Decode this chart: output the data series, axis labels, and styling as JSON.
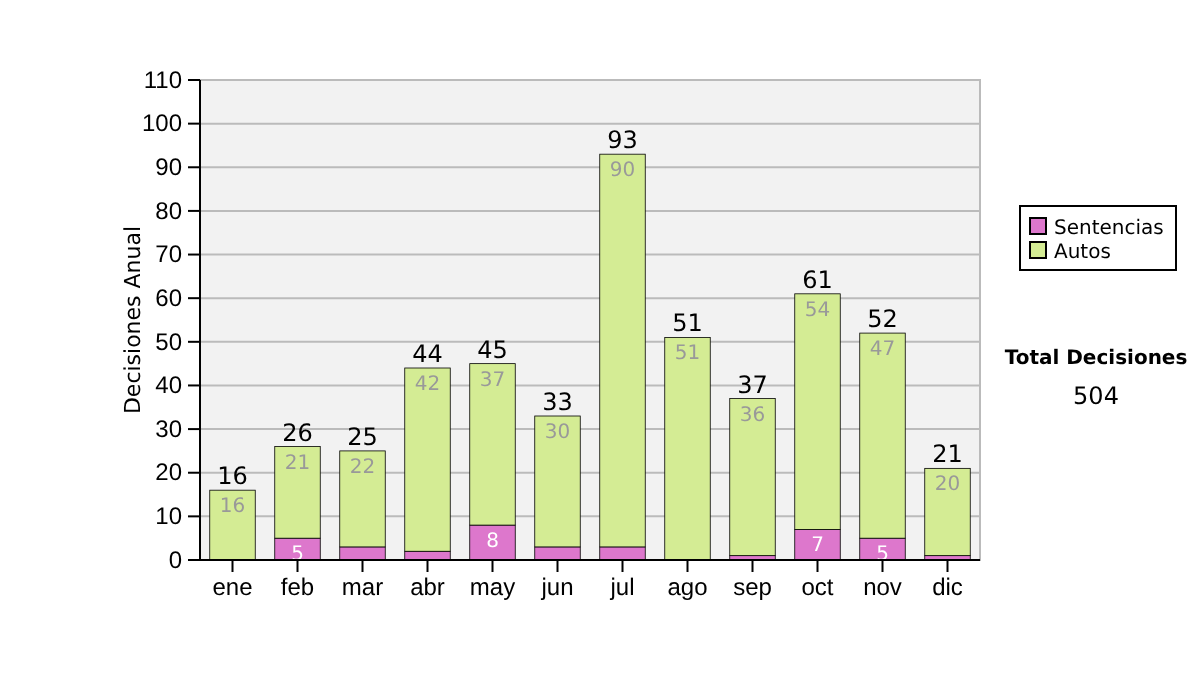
{
  "chart_data": {
    "type": "bar",
    "ylabel": "Decisiones Anual",
    "categories": [
      "ene",
      "feb",
      "mar",
      "abr",
      "may",
      "jun",
      "jul",
      "ago",
      "sep",
      "oct",
      "nov",
      "dic"
    ],
    "series": [
      {
        "name": "Sentencias",
        "color": "#dd77cc",
        "values": [
          0,
          5,
          3,
          2,
          8,
          3,
          3,
          0,
          1,
          7,
          5,
          1
        ],
        "value_labels": [
          null,
          "5",
          null,
          null,
          "8",
          null,
          null,
          null,
          null,
          "7",
          "5",
          null
        ]
      },
      {
        "name": "Autos",
        "color": "#d4ec94",
        "values": [
          16,
          21,
          22,
          42,
          37,
          30,
          90,
          51,
          36,
          54,
          47,
          20
        ],
        "value_labels": [
          "16",
          "21",
          "22",
          "42",
          "37",
          "30",
          "90",
          "51",
          "36",
          "54",
          "47",
          "20"
        ]
      }
    ],
    "stacked": true,
    "totals": [
      "16",
      "26",
      "25",
      "44",
      "45",
      "33",
      "93",
      "51",
      "37",
      "61",
      "52",
      "21"
    ],
    "ylim": [
      0,
      110
    ],
    "yticks": [
      0,
      10,
      20,
      30,
      40,
      50,
      60,
      70,
      80,
      90,
      100,
      110
    ],
    "grid": "y",
    "legend": "right",
    "annotations": [
      "Total Decisiones",
      "504"
    ]
  }
}
